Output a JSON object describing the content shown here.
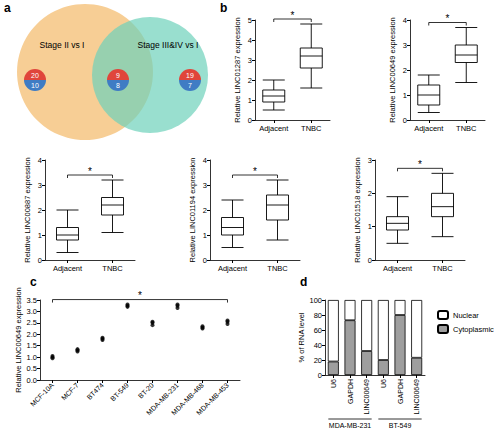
{
  "chart_data": [
    {
      "type": "venn",
      "panel": "a",
      "sets": [
        {
          "label": "Stage II vs I",
          "color": "#f6c582"
        },
        {
          "label": "Stage III&IV vs I",
          "color": "#6ed1bb"
        }
      ],
      "regions": [
        {
          "up": 20,
          "down": 10
        },
        {
          "up": 9,
          "down": 8
        },
        {
          "up": 19,
          "down": 7
        }
      ],
      "colors": [
        "#e0453b",
        "#3f7cc4"
      ]
    },
    {
      "type": "box",
      "panel": "b",
      "categories": [
        "Adjacent",
        "TNBC"
      ],
      "ylabel": "Relative LINC01287 expression",
      "boxes": [
        [
          0.5,
          0.9,
          1.2,
          1.5,
          2.0
        ],
        [
          1.6,
          2.6,
          3.2,
          3.6,
          4.8
        ]
      ],
      "ylim": [
        0,
        5
      ],
      "yticks": [
        0,
        1,
        2,
        3,
        4,
        5
      ],
      "significance": "*"
    },
    {
      "type": "box",
      "categories": [
        "Adjacent",
        "TNBC"
      ],
      "ylabel": "Relative LINC00649 expression",
      "boxes": [
        [
          0.3,
          0.6,
          1.0,
          1.4,
          1.8
        ],
        [
          1.5,
          2.3,
          2.6,
          3.0,
          3.7
        ]
      ],
      "ylim": [
        0,
        4
      ],
      "yticks": [
        0,
        1,
        2,
        3,
        4
      ],
      "significance": "*"
    },
    {
      "type": "box",
      "categories": [
        "Adjacent",
        "TNBC"
      ],
      "ylabel": "Relative LINC00887 expression",
      "boxes": [
        [
          0.3,
          0.8,
          1.0,
          1.3,
          2.0
        ],
        [
          1.1,
          1.8,
          2.2,
          2.5,
          3.2
        ]
      ],
      "ylim": [
        0,
        4
      ],
      "yticks": [
        0,
        1,
        2,
        3,
        4
      ],
      "significance": "*"
    },
    {
      "type": "box",
      "categories": [
        "Adjacent",
        "TNBC"
      ],
      "ylabel": "Relative LINC01194 expression",
      "boxes": [
        [
          0.5,
          1.0,
          1.3,
          1.7,
          2.4
        ],
        [
          0.8,
          1.6,
          2.2,
          2.6,
          3.2
        ]
      ],
      "ylim": [
        0,
        4
      ],
      "yticks": [
        0,
        1,
        2,
        3,
        4
      ],
      "significance": "*"
    },
    {
      "type": "box",
      "categories": [
        "Adjacent",
        "TNBC"
      ],
      "ylabel": "Relative LINC01518 expression",
      "boxes": [
        [
          0.5,
          0.9,
          1.1,
          1.3,
          1.9
        ],
        [
          0.7,
          1.3,
          1.6,
          2.0,
          2.6
        ]
      ],
      "ylim": [
        0,
        3
      ],
      "yticks": [
        0,
        1,
        2,
        3
      ],
      "significance": "*"
    },
    {
      "type": "scatter",
      "panel": "c",
      "categories": [
        "MCF-10A",
        "MCF-7",
        "BT474",
        "BT-549",
        "BT-20",
        "MDA-MB-231",
        "MDA-MB-468",
        "MDA-MB-453"
      ],
      "ylabel": "Relative LINC00649 expression",
      "values": [
        [
          0.95,
          1.0,
          1.05
        ],
        [
          1.25,
          1.3,
          1.35
        ],
        [
          1.75,
          1.8,
          1.85
        ],
        [
          3.2,
          3.25,
          3.3
        ],
        [
          2.4,
          2.5,
          2.55
        ],
        [
          3.15,
          3.25,
          3.3
        ],
        [
          2.25,
          2.3,
          2.35
        ],
        [
          2.45,
          2.55,
          2.6
        ]
      ],
      "color": "#000000",
      "ylim": [
        0,
        3.5
      ],
      "yticks": [
        {
          "value": 0,
          "label": "0.0"
        },
        0.5,
        {
          "value": 1,
          "label": "1.0"
        },
        1.5,
        {
          "value": 2,
          "label": "2.0"
        },
        2.5,
        {
          "value": 3,
          "label": "3.0"
        },
        3.5
      ],
      "significance": "*"
    },
    {
      "type": "bar",
      "panel": "d",
      "stacked": true,
      "legend": "right",
      "categories": [
        "U6",
        "GAPDH",
        "LINC00649",
        "U6",
        "GAPDH",
        "LINC00649"
      ],
      "groups": [
        "MDA-MB-231",
        "BT-549"
      ],
      "ylabel": "% of RNA level",
      "series": [
        {
          "name": "Cytoplasmic",
          "color": "#9e9e9e",
          "values": [
            18,
            73,
            32,
            20,
            80,
            23
          ]
        },
        {
          "name": "Nuclear",
          "color": "#ffffff",
          "values": [
            82,
            27,
            68,
            80,
            20,
            77
          ]
        }
      ],
      "ylim": [
        0,
        100
      ],
      "yticks": [
        0,
        20,
        40,
        60,
        80,
        100
      ]
    }
  ]
}
